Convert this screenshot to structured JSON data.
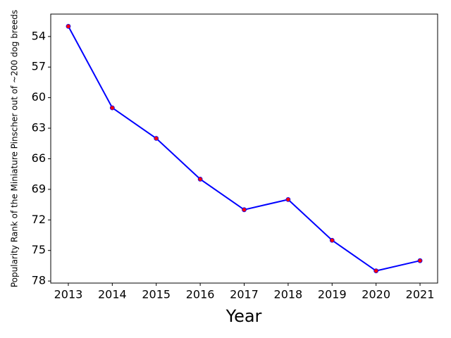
{
  "chart_data": {
    "type": "line",
    "x_label": "Year",
    "y_label": "Popularity Rank of the Miniature Pinscher out of ~200 dog breeds",
    "x": [
      2013,
      2014,
      2015,
      2016,
      2017,
      2018,
      2019,
      2020,
      2021
    ],
    "series": [
      {
        "name": "Rank",
        "color": "#0000ff",
        "marker_color": "#ff0000",
        "values": [
          53,
          61,
          64,
          68,
          71,
          70,
          74,
          77,
          76
        ]
      }
    ],
    "xlim": [
      2012.6,
      2021.4
    ],
    "xticks": [
      2013,
      2014,
      2015,
      2016,
      2017,
      2018,
      2019,
      2020,
      2021
    ],
    "ylim": [
      78.2,
      51.8
    ],
    "yticks": [
      54,
      57,
      60,
      63,
      66,
      69,
      72,
      75,
      78
    ]
  }
}
